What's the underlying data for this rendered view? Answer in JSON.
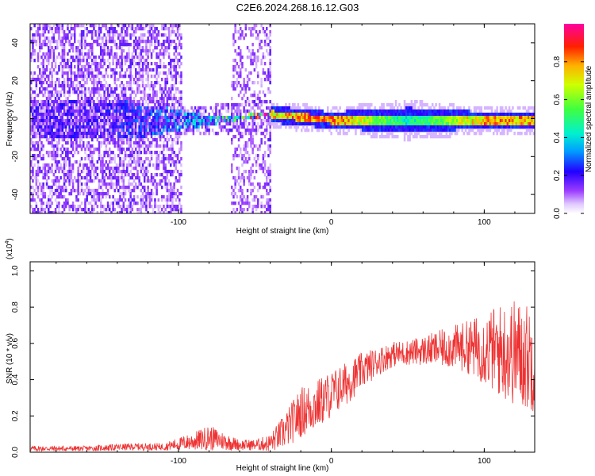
{
  "title": "C2E6.2024.268.16.12.G03",
  "chart_data": [
    {
      "type": "heatmap",
      "xlabel": "Height of straight line (km)",
      "ylabel": "Frequency (Hz)",
      "xlim": [
        -197,
        133
      ],
      "ylim": [
        -50,
        50
      ],
      "xticks": [
        -100,
        0,
        100
      ],
      "yticks": [
        -40,
        -20,
        0,
        20,
        40
      ],
      "colorbar": {
        "label": "Normalized spectral amplitude",
        "range": [
          0,
          1
        ],
        "ticks": [
          0.0,
          0.2,
          0.4,
          0.6,
          0.8
        ]
      },
      "description_points": [
        {
          "x": -150,
          "y_center": 0,
          "spread": 50,
          "amplitude": 0.15
        },
        {
          "x": -80,
          "y_center": 0,
          "spread": 10,
          "amplitude": 0.3
        },
        {
          "x": -40,
          "y_center": 3,
          "spread": 2,
          "amplitude": 0.85
        },
        {
          "x": 0,
          "y_center": 0,
          "spread": 2,
          "amplitude": 0.95
        },
        {
          "x": 50,
          "y_center": 0,
          "spread": 3,
          "amplitude": 0.5
        },
        {
          "x": 100,
          "y_center": 0,
          "spread": 2,
          "amplitude": 0.9
        }
      ],
      "grid": false
    },
    {
      "type": "line",
      "xlabel": "Height of straight line (km)",
      "ylabel": "SNR (10 * v/v)",
      "y_multiplier": "(x10",
      "y_multiplier_exp": "4",
      "y_multiplier_close": ")",
      "xlim": [
        -197,
        133
      ],
      "ylim": [
        0,
        1.05
      ],
      "xticks": [
        -100,
        0,
        100
      ],
      "yticks": [
        0.0,
        0.2,
        0.4,
        0.6,
        0.8,
        1.0
      ],
      "series_color": "#ee3333",
      "envelope": {
        "x": [
          -197,
          -160,
          -130,
          -110,
          -90,
          -80,
          -70,
          -60,
          -50,
          -40,
          -30,
          -20,
          -10,
          0,
          10,
          20,
          30,
          40,
          50,
          60,
          70,
          80,
          90,
          100,
          110,
          120,
          130
        ],
        "mean": [
          0.02,
          0.02,
          0.03,
          0.03,
          0.06,
          0.08,
          0.06,
          0.04,
          0.04,
          0.05,
          0.12,
          0.22,
          0.26,
          0.32,
          0.38,
          0.45,
          0.5,
          0.54,
          0.55,
          0.56,
          0.57,
          0.58,
          0.58,
          0.57,
          0.56,
          0.55,
          0.52
        ],
        "amp": [
          0.015,
          0.015,
          0.02,
          0.02,
          0.05,
          0.07,
          0.05,
          0.03,
          0.03,
          0.05,
          0.1,
          0.14,
          0.14,
          0.13,
          0.12,
          0.1,
          0.08,
          0.07,
          0.07,
          0.08,
          0.1,
          0.12,
          0.15,
          0.2,
          0.26,
          0.3,
          0.3
        ]
      },
      "grid": false
    }
  ]
}
